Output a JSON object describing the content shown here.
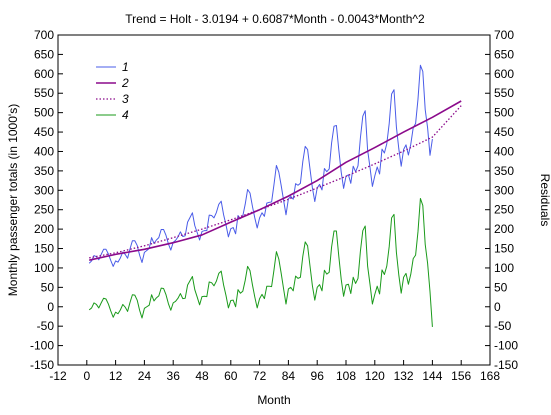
{
  "chart_data": {
    "type": "line",
    "title": "Trend = Holt - 3.0194 + 0.6087*Month - 0.0043*Month^2",
    "xlabel": "Month",
    "ylabel": "Monthly passenger totals (in 1000's)",
    "y2label": "Residuals",
    "xlim": [
      -12,
      168
    ],
    "ylim": [
      -150,
      700
    ],
    "xticks": [
      "-12",
      "0",
      "12",
      "24",
      "36",
      "48",
      "60",
      "72",
      "84",
      "96",
      "108",
      "120",
      "132",
      "144",
      "156",
      "168"
    ],
    "yticks": [
      "-150",
      "-100",
      "-50",
      "0",
      "50",
      "100",
      "150",
      "200",
      "250",
      "300",
      "350",
      "400",
      "450",
      "500",
      "550",
      "600",
      "650",
      "700"
    ],
    "y2ticks": [
      "-150",
      "-100",
      "-50",
      "0",
      "50",
      "100",
      "150",
      "200",
      "250",
      "300",
      "350",
      "400",
      "450",
      "500",
      "550",
      "600",
      "650",
      "700"
    ],
    "grid": false,
    "legend_position": "top-left",
    "series": [
      {
        "name": "1",
        "color": "#4a5ce8",
        "style": "solid",
        "x_start": 1,
        "values": [
          112,
          118,
          132,
          129,
          121,
          135,
          148,
          148,
          136,
          119,
          104,
          118,
          115,
          126,
          141,
          135,
          125,
          149,
          170,
          170,
          158,
          133,
          114,
          140,
          145,
          150,
          178,
          163,
          172,
          178,
          199,
          199,
          184,
          162,
          146,
          166,
          171,
          180,
          193,
          181,
          183,
          218,
          230,
          242,
          209,
          191,
          172,
          194,
          196,
          196,
          236,
          235,
          229,
          243,
          264,
          272,
          237,
          211,
          180,
          201,
          204,
          188,
          235,
          227,
          234,
          264,
          302,
          293,
          259,
          229,
          203,
          229,
          242,
          233,
          267,
          269,
          270,
          315,
          364,
          347,
          312,
          274,
          237,
          278,
          284,
          277,
          317,
          313,
          318,
          374,
          413,
          405,
          355,
          306,
          271,
          306,
          315,
          301,
          356,
          348,
          355,
          422,
          465,
          467,
          404,
          347,
          305,
          336,
          340,
          318,
          362,
          348,
          363,
          435,
          491,
          505,
          404,
          359,
          310,
          337,
          360,
          342,
          406,
          396,
          420,
          472,
          548,
          559,
          463,
          407,
          362,
          405,
          417,
          391,
          419,
          461,
          472,
          535,
          622,
          606,
          508,
          461,
          390,
          432
        ]
      },
      {
        "name": "2",
        "color": "#8b0a8b",
        "style": "solid",
        "x": [
          1,
          12,
          24,
          36,
          48,
          60,
          72,
          84,
          96,
          108,
          120,
          132,
          144,
          156
        ],
        "values": [
          120,
          135,
          148,
          165,
          185,
          218,
          250,
          285,
          325,
          372,
          410,
          450,
          488,
          530
        ]
      },
      {
        "name": "3",
        "color": "#8b0a8b",
        "style": "dotted",
        "x": [
          1,
          12,
          24,
          36,
          48,
          60,
          72,
          84,
          96,
          108,
          120,
          132,
          144,
          156
        ],
        "values": [
          126,
          139,
          157,
          178,
          200,
          224,
          250,
          277,
          306,
          336,
          368,
          401,
          437,
          518
        ]
      },
      {
        "name": "4",
        "color": "#1a9a1a",
        "style": "solid",
        "x_start": 1,
        "values": [
          -8,
          -3,
          10,
          6,
          -3,
          10,
          22,
          20,
          7,
          -11,
          -27,
          -14,
          -18,
          -8,
          6,
          -1,
          -12,
          11,
          31,
          30,
          17,
          -9,
          -29,
          -4,
          0,
          4,
          31,
          15,
          23,
          28,
          48,
          47,
          31,
          8,
          -9,
          10,
          14,
          22,
          34,
          21,
          22,
          56,
          67,
          78,
          44,
          25,
          5,
          26,
          27,
          26,
          64,
          62,
          54,
          66,
          86,
          92,
          56,
          29,
          -3,
          16,
          17,
          0,
          44,
          35,
          40,
          68,
          104,
          93,
          57,
          25,
          -3,
          21,
          32,
          21,
          53,
          53,
          52,
          95,
          142,
          123,
          86,
          46,
          7,
          46,
          50,
          41,
          79,
          73,
          76,
          130,
          167,
          157,
          105,
          54,
          17,
          50,
          57,
          41,
          94,
          84,
          89,
          154,
          195,
          195,
          130,
          71,
          27,
          56,
          58,
          34,
          76,
          60,
          73,
          143,
          196,
          208,
          105,
          58,
          7,
          32,
          53,
          33,
          95,
          83,
          105,
          155,
          229,
          238,
          140,
          82,
          35,
          76,
          86,
          58,
          84,
          124,
          133,
          194,
          279,
          261,
          161,
          112,
          39,
          -52
        ]
      }
    ]
  }
}
